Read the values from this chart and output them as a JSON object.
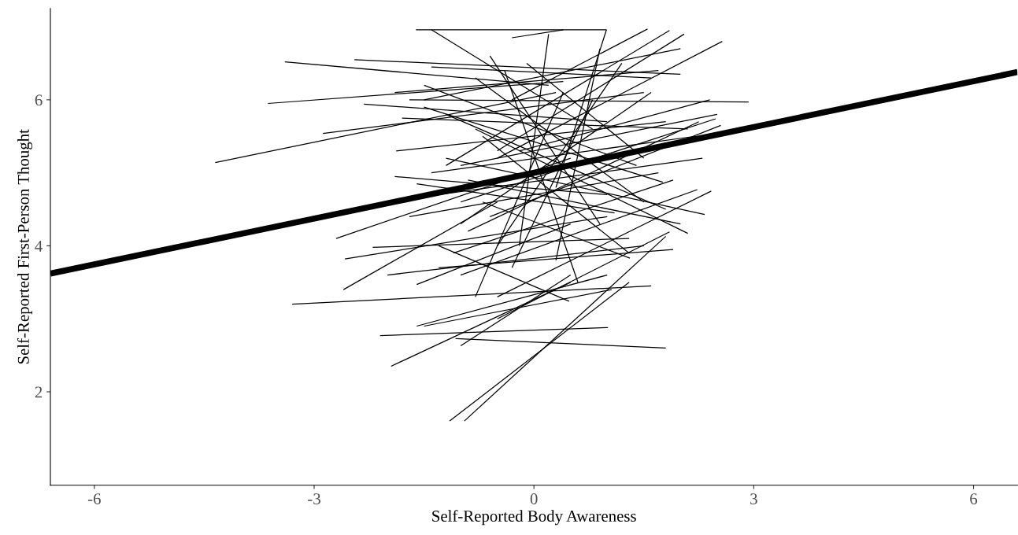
{
  "chart_data": {
    "type": "line",
    "xlabel": "Self-Reported Body Awareness",
    "ylabel": "Self-Reported First-Person Thought",
    "xlim": [
      -6.6,
      6.6
    ],
    "ylim": [
      0.72,
      7.25
    ],
    "xticks": [
      -6,
      -3,
      0,
      3,
      6
    ],
    "yticks": [
      2,
      4,
      6
    ],
    "series": [
      {
        "color": "#000000",
        "x": [
          -6.6,
          6.6
        ],
        "values": [
          3.62,
          6.38
        ]
      },
      {
        "color": "#000000",
        "x": [
          -4.35,
          0.3
        ],
        "values": [
          5.14,
          6.1
        ]
      },
      {
        "color": "#000000",
        "x": [
          -3.63,
          0.4
        ],
        "values": [
          5.95,
          6.25
        ]
      },
      {
        "color": "#000000",
        "x": [
          -3.4,
          0.2
        ],
        "values": [
          6.52,
          6.2
        ]
      },
      {
        "color": "#000000",
        "x": [
          -2.45,
          2.0
        ],
        "values": [
          6.55,
          6.35
        ]
      },
      {
        "color": "#000000",
        "x": [
          -3.3,
          1.6
        ],
        "values": [
          3.2,
          3.45
        ]
      },
      {
        "color": "#000000",
        "x": [
          -2.32,
          1.0
        ],
        "values": [
          5.94,
          5.7
        ]
      },
      {
        "color": "#000000",
        "x": [
          -2.88,
          1.5
        ],
        "values": [
          5.54,
          6.1
        ]
      },
      {
        "color": "#000000",
        "x": [
          -1.88,
          1.8
        ],
        "values": [
          5.3,
          5.7
        ]
      },
      {
        "color": "#000000",
        "x": [
          -1.9,
          1.0
        ],
        "values": [
          4.95,
          4.7
        ]
      },
      {
        "color": "#000000",
        "x": [
          -2.7,
          0.5
        ],
        "values": [
          4.1,
          5.2
        ]
      },
      {
        "color": "#000000",
        "x": [
          -2.2,
          1.3
        ],
        "values": [
          3.98,
          4.1
        ]
      },
      {
        "color": "#000000",
        "x": [
          -2.58,
          1.0
        ],
        "values": [
          3.82,
          4.4
        ]
      },
      {
        "color": "#000000",
        "x": [
          -2.6,
          -0.5
        ],
        "values": [
          3.4,
          4.6
        ]
      },
      {
        "color": "#000000",
        "x": [
          -2.0,
          1.5
        ],
        "values": [
          3.6,
          4.0
        ]
      },
      {
        "color": "#000000",
        "x": [
          -1.6,
          0.5
        ],
        "values": [
          3.47,
          4.3
        ]
      },
      {
        "color": "#000000",
        "x": [
          -1.6,
          1.0
        ],
        "values": [
          2.9,
          3.6
        ]
      },
      {
        "color": "#000000",
        "x": [
          -2.1,
          1.01
        ],
        "values": [
          2.77,
          2.88
        ]
      },
      {
        "color": "#000000",
        "x": [
          -1.95,
          0.5
        ],
        "values": [
          2.35,
          3.5
        ]
      },
      {
        "color": "#000000",
        "x": [
          -1.07,
          1.8
        ],
        "values": [
          2.73,
          2.6
        ]
      },
      {
        "color": "#000000",
        "x": [
          -1.0,
          0.5
        ],
        "values": [
          2.63,
          3.6
        ]
      },
      {
        "color": "#000000",
        "x": [
          -1.15,
          1.3
        ],
        "values": [
          1.6,
          3.5
        ]
      },
      {
        "color": "#000000",
        "x": [
          -0.95,
          1.8
        ],
        "values": [
          1.6,
          4.13
        ]
      },
      {
        "color": "#000000",
        "x": [
          -0.5,
          2.57
        ],
        "values": [
          5.2,
          6.8
        ]
      },
      {
        "color": "#000000",
        "x": [
          -1.0,
          2.48
        ],
        "values": [
          4.6,
          5.74
        ]
      },
      {
        "color": "#000000",
        "x": [
          -1.7,
          2.93
        ],
        "values": [
          6.0,
          5.97
        ]
      },
      {
        "color": "#000000",
        "x": [
          -0.5,
          2.05
        ],
        "values": [
          5.3,
          6.9
        ]
      },
      {
        "color": "#000000",
        "x": [
          -1.2,
          1.85
        ],
        "values": [
          5.1,
          6.95
        ]
      },
      {
        "color": "#000000",
        "x": [
          -0.3,
          1.55
        ],
        "values": [
          6.0,
          6.97
        ]
      },
      {
        "color": "#000000",
        "x": [
          -1.5,
          2.0
        ],
        "values": [
          6.0,
          6.7
        ]
      },
      {
        "color": "#000000",
        "x": [
          -0.6,
          2.55
        ],
        "values": [
          4.4,
          5.65
        ]
      },
      {
        "color": "#000000",
        "x": [
          -0.9,
          2.25
        ],
        "values": [
          4.2,
          5.7
        ]
      },
      {
        "color": "#000000",
        "x": [
          -1.5,
          1.76
        ],
        "values": [
          5.9,
          4.87
        ]
      },
      {
        "color": "#000000",
        "x": [
          -1.2,
          2.33
        ],
        "values": [
          5.2,
          4.43
        ]
      },
      {
        "color": "#000000",
        "x": [
          -0.8,
          2.1
        ],
        "values": [
          5.6,
          4.17
        ]
      },
      {
        "color": "#000000",
        "x": [
          -0.5,
          2.42
        ],
        "values": [
          3.3,
          4.75
        ]
      },
      {
        "color": "#000000",
        "x": [
          -1.0,
          2.23
        ],
        "values": [
          3.6,
          4.77
        ]
      },
      {
        "color": "#000000",
        "x": [
          -0.5,
          1.85
        ],
        "values": [
          3.0,
          4.19
        ]
      },
      {
        "color": "#000000",
        "x": [
          -1.5,
          1.06
        ],
        "values": [
          2.9,
          3.4
        ]
      },
      {
        "color": "#000000",
        "x": [
          -1.3,
          0.48
        ],
        "values": [
          4.0,
          3.24
        ]
      },
      {
        "color": "#000000",
        "x": [
          -0.7,
          1.31
        ],
        "values": [
          4.6,
          3.83
        ]
      },
      {
        "color": "#000000",
        "x": [
          -1.2,
          1.8
        ],
        "values": [
          5.8,
          4.5
        ]
      },
      {
        "color": "#000000",
        "x": [
          -0.8,
          1.5
        ],
        "values": [
          6.3,
          4.6
        ]
      },
      {
        "color": "#000000",
        "x": [
          -1.0,
          1.6
        ],
        "values": [
          4.3,
          6.1
        ]
      },
      {
        "color": "#000000",
        "x": [
          -0.5,
          1.2
        ],
        "values": [
          4.0,
          6.5
        ]
      },
      {
        "color": "#000000",
        "x": [
          -1.4,
          2.2
        ],
        "values": [
          5.0,
          5.5
        ]
      },
      {
        "color": "#000000",
        "x": [
          -0.9,
          2.0
        ],
        "values": [
          4.9,
          4.3
        ]
      },
      {
        "color": "#000000",
        "x": [
          -1.7,
          1.7
        ],
        "values": [
          4.4,
          5.0
        ]
      },
      {
        "color": "#000000",
        "x": [
          -0.3,
          0.8
        ],
        "values": [
          3.7,
          6.0
        ]
      },
      {
        "color": "#000000",
        "x": [
          -0.6,
          0.9
        ],
        "values": [
          6.6,
          4.3
        ]
      },
      {
        "color": "#000000",
        "x": [
          -1.3,
          2.3
        ],
        "values": [
          4.7,
          5.2
        ]
      },
      {
        "color": "#000000",
        "x": [
          -0.7,
          1.3
        ],
        "values": [
          5.5,
          3.9
        ]
      },
      {
        "color": "#000000",
        "x": [
          -1.8,
          2.1
        ],
        "values": [
          5.75,
          5.6
        ]
      },
      {
        "color": "#000000",
        "x": [
          -1.1,
          1.9
        ],
        "values": [
          3.9,
          4.9
        ]
      },
      {
        "color": "#000000",
        "x": [
          0.2,
          -0.2
        ],
        "values": [
          6.9,
          4.0
        ]
      },
      {
        "color": "#000000",
        "x": [
          -0.4,
          0.6
        ],
        "values": [
          6.4,
          3.5
        ]
      },
      {
        "color": "#000000",
        "x": [
          -1.5,
          1.4
        ],
        "values": [
          6.2,
          5.1
        ]
      },
      {
        "color": "#000000",
        "x": [
          -0.2,
          2.4
        ],
        "values": [
          5.3,
          6.0
        ]
      },
      {
        "color": "#000000",
        "x": [
          -1.6,
          1.1
        ],
        "values": [
          4.85,
          4.45
        ]
      },
      {
        "color": "#000000",
        "x": [
          0.3,
          0.9
        ],
        "values": [
          3.8,
          6.7
        ]
      },
      {
        "color": "#000000",
        "x": [
          -0.8,
          0.4
        ],
        "values": [
          3.3,
          6.1
        ]
      },
      {
        "color": "#000000",
        "x": [
          -1.9,
          1.7
        ],
        "values": [
          6.1,
          6.4
        ]
      },
      {
        "color": "#000000",
        "x": [
          -1.3,
          1.9
        ],
        "values": [
          3.7,
          3.95
        ]
      },
      {
        "color": "#000000",
        "x": [
          -0.1,
          1.5
        ],
        "values": [
          6.5,
          5.2
        ]
      },
      {
        "color": "#000000",
        "x": [
          -1.0,
          2.5
        ],
        "values": [
          5.1,
          5.8
        ]
      },
      {
        "color": "#000000",
        "x": [
          -1.4,
          1.6
        ],
        "values": [
          6.45,
          6.3
        ]
      },
      {
        "color": "#000000",
        "x": [
          -1.61,
          0.99
        ],
        "values": [
          6.96,
          6.96
        ]
      },
      {
        "color": "#000000",
        "x": [
          0.99,
          0.3
        ],
        "values": [
          6.96,
          4.8
        ]
      },
      {
        "color": "#000000",
        "x": [
          -1.4,
          0.8
        ],
        "values": [
          6.96,
          5.6
        ]
      },
      {
        "color": "#000000",
        "x": [
          -0.3,
          0.4
        ],
        "values": [
          6.85,
          6.96
        ]
      }
    ]
  }
}
